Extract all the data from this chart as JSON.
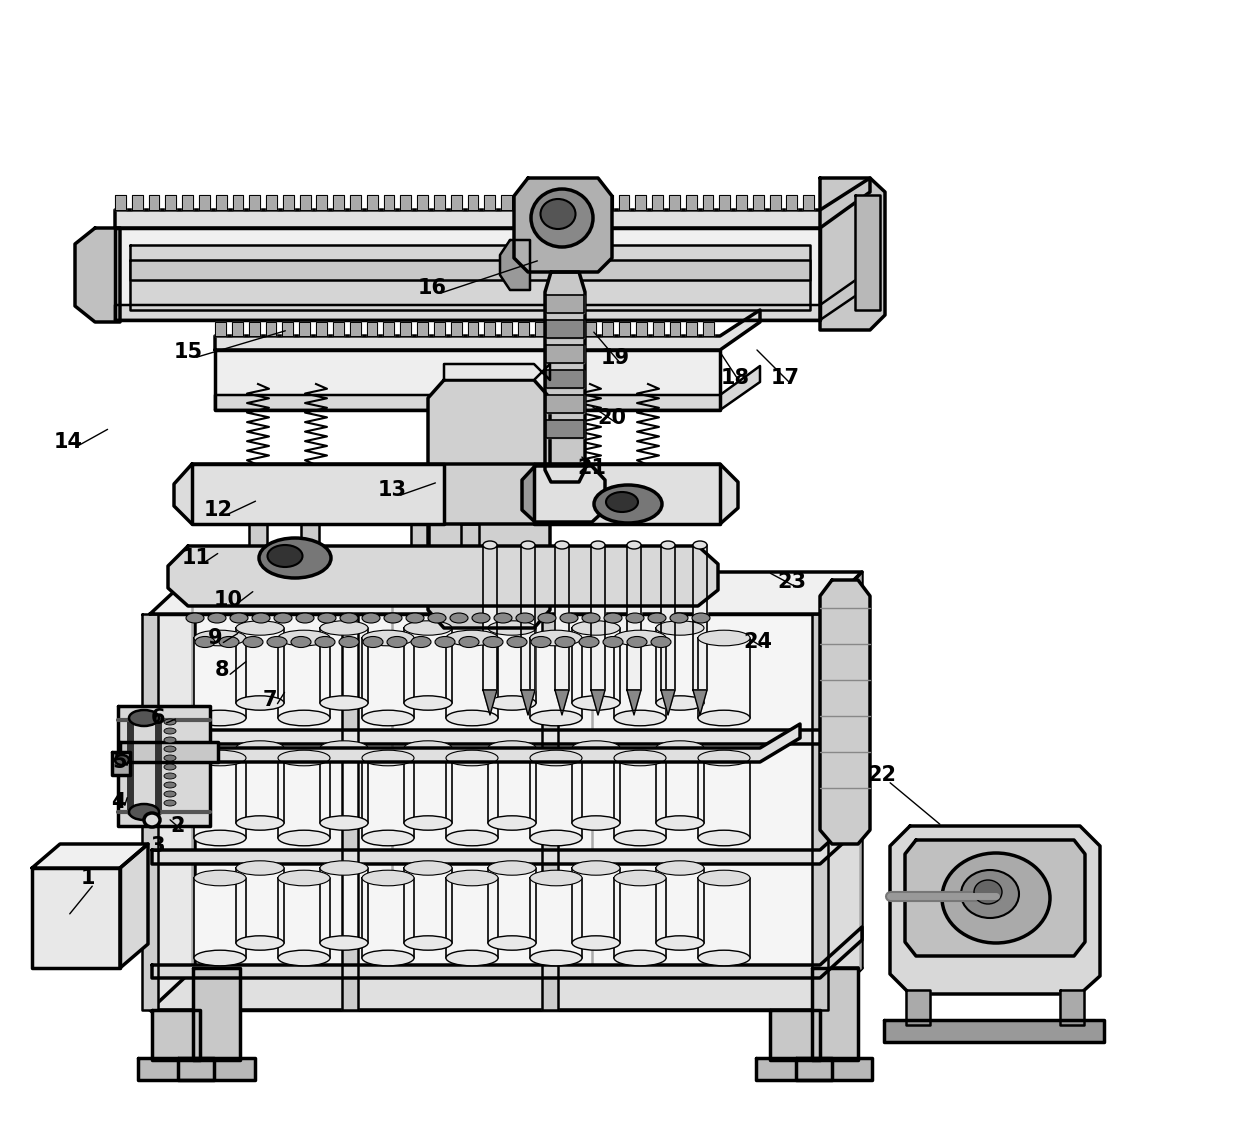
{
  "background_color": "#ffffff",
  "figsize": [
    12.4,
    11.4
  ],
  "dpi": 100,
  "annotations": [
    [
      "1",
      88,
      878
    ],
    [
      "2",
      178,
      826
    ],
    [
      "3",
      158,
      846
    ],
    [
      "4",
      118,
      802
    ],
    [
      "5",
      120,
      762
    ],
    [
      "6",
      158,
      718
    ],
    [
      "7",
      270,
      700
    ],
    [
      "8",
      222,
      670
    ],
    [
      "9",
      215,
      638
    ],
    [
      "10",
      228,
      600
    ],
    [
      "11",
      195,
      558
    ],
    [
      "12",
      218,
      508
    ],
    [
      "13",
      392,
      490
    ],
    [
      "14",
      68,
      442
    ],
    [
      "15",
      188,
      352
    ],
    [
      "16",
      432,
      288
    ],
    [
      "17",
      785,
      378
    ],
    [
      "18",
      735,
      378
    ],
    [
      "19",
      615,
      358
    ],
    [
      "20",
      612,
      418
    ],
    [
      "21",
      592,
      468
    ],
    [
      "22",
      882,
      775
    ],
    [
      "23",
      792,
      582
    ],
    [
      "24",
      758,
      642
    ]
  ],
  "lw": 1.8,
  "lw2": 2.5,
  "lw3": 3.2
}
